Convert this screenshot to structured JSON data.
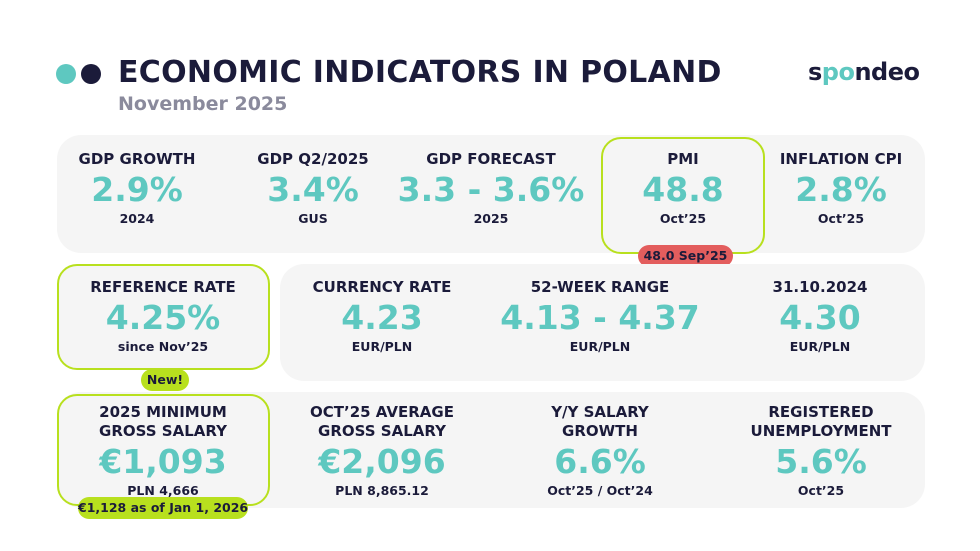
{
  "header": {
    "title": "ECONOMIC INDICATORS IN POLAND",
    "subtitle": "November 2025",
    "logo": {
      "part1": "s",
      "part2": "po",
      "part3": "ndeo"
    }
  },
  "colors": {
    "teal": "#5ec8c0",
    "navy": "#1b1b3a",
    "lime": "#b8e01e",
    "red": "#e35d5d",
    "panel": "#f5f5f5"
  },
  "row1": [
    {
      "label": "GDP GROWTH",
      "value": "2.9%",
      "sub": "2024"
    },
    {
      "label": "GDP Q2/2025",
      "value": "3.4%",
      "sub": "GUS"
    },
    {
      "label": "GDP FORECAST",
      "value": "3.3 - 3.6%",
      "sub": "2025"
    },
    {
      "label": "PMI",
      "value": "48.8",
      "sub": "Oct’25",
      "badge": "48.0 Sep’25"
    },
    {
      "label": "INFLATION CPI",
      "value": "2.8%",
      "sub": "Oct’25"
    }
  ],
  "row2": [
    {
      "label": "REFERENCE RATE",
      "value": "4.25%",
      "sub": "since Nov’25",
      "badge": "New!"
    },
    {
      "label": "CURRENCY RATE",
      "value": "4.23",
      "sub": "EUR/PLN"
    },
    {
      "label": "52-WEEK RANGE",
      "value": "4.13 - 4.37",
      "sub": "EUR/PLN"
    },
    {
      "label": "31.10.2024",
      "value": "4.30",
      "sub": "EUR/PLN"
    }
  ],
  "row3": [
    {
      "label1": "2025 MINIMUM",
      "label2": "GROSS SALARY",
      "value": "€1,093",
      "sub": "PLN 4,666",
      "badge": "€1,128 as of Jan 1, 2026"
    },
    {
      "label1": "OCT’25 AVERAGE",
      "label2": "GROSS SALARY",
      "value": "€2,096",
      "sub": "PLN 8,865.12"
    },
    {
      "label1": "Y/Y SALARY",
      "label2": "GROWTH",
      "value": "6.6%",
      "sub": "Oct’25 / Oct’24"
    },
    {
      "label1": "REGISTERED",
      "label2": "UNEMPLOYMENT",
      "value": "5.6%",
      "sub": "Oct’25"
    }
  ]
}
